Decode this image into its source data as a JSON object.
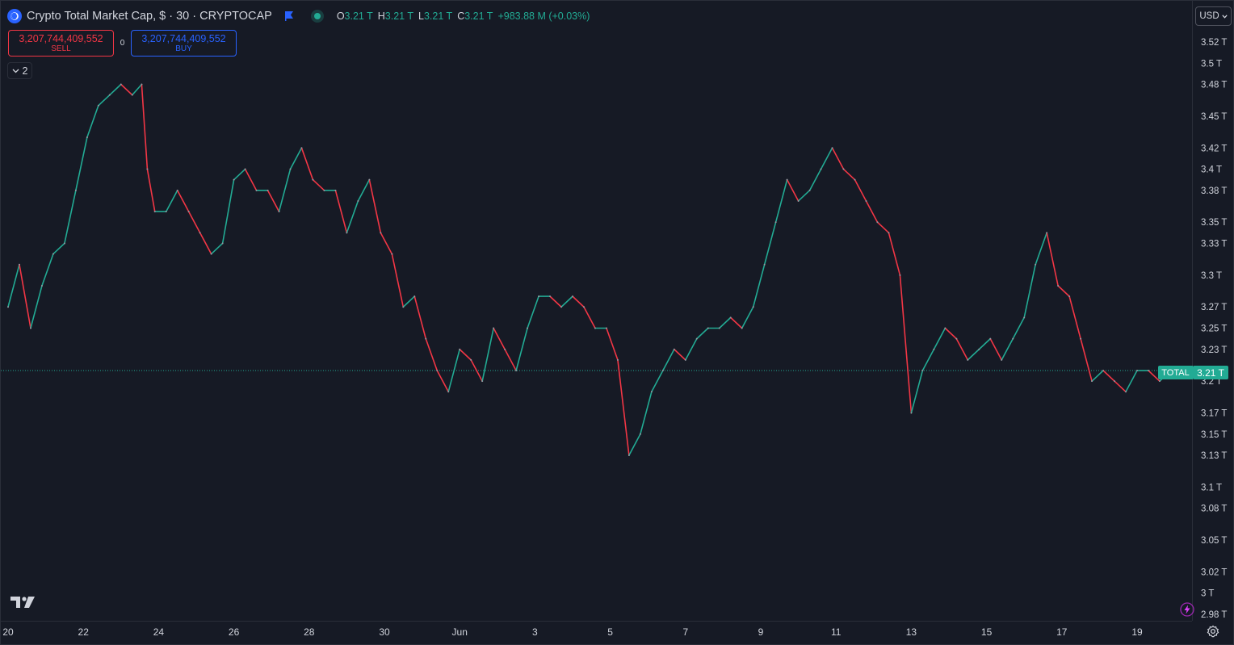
{
  "header": {
    "symbol_title": "Crypto Total Market Cap, $ · 30 · CRYPTOCAP",
    "ohlc": [
      {
        "key": "O",
        "value": "3.21 T"
      },
      {
        "key": "H",
        "value": "3.21 T"
      },
      {
        "key": "L",
        "value": "3.21 T"
      },
      {
        "key": "C",
        "value": "3.21 T"
      }
    ],
    "change": "+983.88 M (+0.03%)"
  },
  "trade": {
    "sell_price": "3,207,744,409,552",
    "sell_label": "SELL",
    "spread": "0",
    "buy_price": "3,207,744,409,552",
    "buy_label": "BUY"
  },
  "indicators_toggle": {
    "count": "2"
  },
  "currency": "USD",
  "last_price": {
    "series_label": "TOTAL",
    "value": "3.21 T"
  },
  "colors": {
    "up": "#22ab94",
    "down": "#f23645",
    "background": "#161a25",
    "accent": "#2962ff"
  },
  "icons": [
    "symbol-logo-icon",
    "flag-icon",
    "status-dot-icon",
    "chevron-down-icon",
    "tradingview-logo-icon",
    "lightning-icon",
    "settings-icon"
  ],
  "chart_data": {
    "type": "line",
    "price_axis_ticks": [
      {
        "value": 3.52,
        "label": "3.52 T"
      },
      {
        "value": 3.5,
        "label": "3.5 T"
      },
      {
        "value": 3.48,
        "label": "3.48 T"
      },
      {
        "value": 3.45,
        "label": "3.45 T"
      },
      {
        "value": 3.42,
        "label": "3.42 T"
      },
      {
        "value": 3.4,
        "label": "3.4 T"
      },
      {
        "value": 3.38,
        "label": "3.38 T"
      },
      {
        "value": 3.35,
        "label": "3.35 T"
      },
      {
        "value": 3.33,
        "label": "3.33 T"
      },
      {
        "value": 3.3,
        "label": "3.3 T"
      },
      {
        "value": 3.27,
        "label": "3.27 T"
      },
      {
        "value": 3.25,
        "label": "3.25 T"
      },
      {
        "value": 3.23,
        "label": "3.23 T"
      },
      {
        "value": 3.2,
        "label": "3.2 T"
      },
      {
        "value": 3.17,
        "label": "3.17 T"
      },
      {
        "value": 3.15,
        "label": "3.15 T"
      },
      {
        "value": 3.13,
        "label": "3.13 T"
      },
      {
        "value": 3.1,
        "label": "3.1 T"
      },
      {
        "value": 3.08,
        "label": "3.08 T"
      },
      {
        "value": 3.05,
        "label": "3.05 T"
      },
      {
        "value": 3.02,
        "label": "3.02 T"
      },
      {
        "value": 3.0,
        "label": "3 T"
      },
      {
        "value": 2.98,
        "label": "2.98 T"
      }
    ],
    "time_axis_ticks": [
      {
        "t": 0,
        "label": "20"
      },
      {
        "t": 2,
        "label": "22"
      },
      {
        "t": 4,
        "label": "24"
      },
      {
        "t": 6,
        "label": "26"
      },
      {
        "t": 8,
        "label": "28"
      },
      {
        "t": 10,
        "label": "30"
      },
      {
        "t": 12,
        "label": "Jun"
      },
      {
        "t": 14,
        "label": "3"
      },
      {
        "t": 16,
        "label": "5"
      },
      {
        "t": 18,
        "label": "7"
      },
      {
        "t": 20,
        "label": "9"
      },
      {
        "t": 22,
        "label": "11"
      },
      {
        "t": 24,
        "label": "13"
      },
      {
        "t": 26,
        "label": "15"
      },
      {
        "t": 28,
        "label": "17"
      },
      {
        "t": 30,
        "label": "19"
      }
    ],
    "x_range": [
      0,
      31.4
    ],
    "y_range": [
      2.97,
      3.53
    ],
    "last_value": 3.21,
    "x": [
      0,
      0.3,
      0.6,
      0.9,
      1.2,
      1.5,
      1.8,
      2.1,
      2.4,
      2.7,
      3.0,
      3.3,
      3.55,
      3.7,
      3.9,
      4.2,
      4.5,
      4.8,
      5.1,
      5.4,
      5.7,
      6.0,
      6.3,
      6.6,
      6.9,
      7.2,
      7.5,
      7.8,
      8.1,
      8.4,
      8.7,
      9.0,
      9.3,
      9.6,
      9.9,
      10.2,
      10.5,
      10.8,
      11.1,
      11.4,
      11.7,
      12.0,
      12.3,
      12.6,
      12.9,
      13.2,
      13.5,
      13.8,
      14.1,
      14.4,
      14.7,
      15.0,
      15.3,
      15.6,
      15.9,
      16.2,
      16.5,
      16.8,
      17.1,
      17.4,
      17.7,
      18.0,
      18.3,
      18.6,
      18.9,
      19.2,
      19.5,
      19.8,
      20.1,
      20.4,
      20.7,
      21.0,
      21.3,
      21.6,
      21.9,
      22.2,
      22.5,
      22.8,
      23.1,
      23.4,
      23.7,
      24.0,
      24.3,
      24.6,
      24.9,
      25.2,
      25.5,
      25.8,
      26.1,
      26.4,
      26.7,
      27.0,
      27.3,
      27.6,
      27.9,
      28.2,
      28.5,
      28.8,
      29.1,
      29.4,
      29.7,
      30.0,
      30.3,
      30.6,
      30.9,
      31.2
    ],
    "y": [
      3.27,
      3.31,
      3.25,
      3.29,
      3.32,
      3.33,
      3.38,
      3.43,
      3.46,
      3.47,
      3.48,
      3.47,
      3.48,
      3.4,
      3.36,
      3.36,
      3.38,
      3.36,
      3.34,
      3.32,
      3.33,
      3.39,
      3.4,
      3.38,
      3.38,
      3.36,
      3.4,
      3.42,
      3.39,
      3.38,
      3.38,
      3.34,
      3.37,
      3.39,
      3.34,
      3.32,
      3.27,
      3.28,
      3.24,
      3.21,
      3.19,
      3.23,
      3.22,
      3.2,
      3.25,
      3.23,
      3.21,
      3.25,
      3.28,
      3.28,
      3.27,
      3.28,
      3.27,
      3.25,
      3.25,
      3.22,
      3.13,
      3.15,
      3.19,
      3.21,
      3.23,
      3.22,
      3.24,
      3.25,
      3.25,
      3.26,
      3.25,
      3.27,
      3.31,
      3.35,
      3.39,
      3.37,
      3.38,
      3.4,
      3.42,
      3.4,
      3.39,
      3.37,
      3.35,
      3.34,
      3.3,
      3.17,
      3.21,
      3.23,
      3.25,
      3.24,
      3.22,
      3.23,
      3.24,
      3.22,
      3.24,
      3.26,
      3.31,
      3.34,
      3.29,
      3.28,
      3.24,
      3.2,
      3.21,
      3.2,
      3.19,
      3.21,
      3.21,
      3.2,
      3.21,
      3.21
    ]
  }
}
